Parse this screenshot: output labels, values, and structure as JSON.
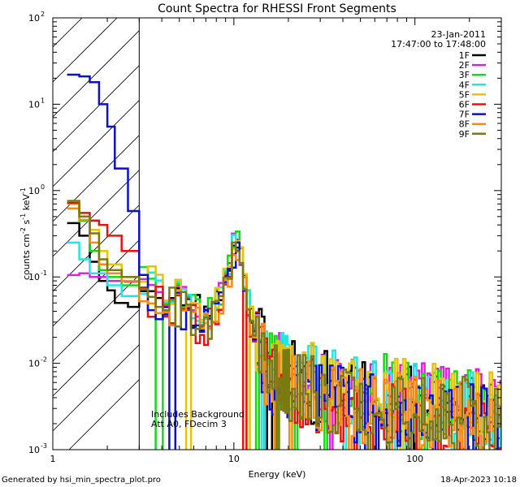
{
  "chart_data": {
    "type": "line",
    "title": "Count Spectra for RHESSI Front Segments",
    "xlabel": "Energy (keV)",
    "ylabel_parts": [
      "counts cm",
      "-2",
      " s",
      "-1",
      " keV",
      "-1"
    ],
    "xscale": "log",
    "yscale": "log",
    "xlim": [
      1,
      300
    ],
    "ylim": [
      0.001,
      100
    ],
    "x_ticks": [
      {
        "v": 1,
        "label": "1"
      },
      {
        "v": 10,
        "label": "10"
      },
      {
        "v": 100,
        "label": "100"
      }
    ],
    "y_ticks": [
      {
        "v": 0.001,
        "base": "10",
        "exp": "-3"
      },
      {
        "v": 0.01,
        "base": "10",
        "exp": "-2"
      },
      {
        "v": 0.1,
        "base": "10",
        "exp": "-1"
      },
      {
        "v": 1,
        "base": "10",
        "exp": "0"
      },
      {
        "v": 10,
        "base": "10",
        "exp": "1"
      },
      {
        "v": 100,
        "base": "10",
        "exp": "2"
      }
    ],
    "date": "23-Jan-2011",
    "time_range": "17:47:00 to 17:48:00",
    "annotations": [
      "Includes Background",
      "Att A0, FDecim 3"
    ],
    "excluded_region_max_kev": 3,
    "footer_left": "Generated by hsi_min_spectra_plot.pro",
    "footer_right": "18-Apr-2023 10:18",
    "base_spectrum_above_3kev": [
      [
        3,
        0.08
      ],
      [
        4,
        0.055
      ],
      [
        5,
        0.045
      ],
      [
        6,
        0.035
      ],
      [
        7,
        0.03
      ],
      [
        8,
        0.04
      ],
      [
        9,
        0.09
      ],
      [
        10,
        0.25
      ],
      [
        11,
        0.12
      ],
      [
        12,
        0.03
      ],
      [
        14,
        0.012
      ],
      [
        16,
        0.008
      ],
      [
        20,
        0.006
      ],
      [
        25,
        0.005
      ],
      [
        30,
        0.0045
      ],
      [
        40,
        0.004
      ],
      [
        50,
        0.0035
      ],
      [
        60,
        0.004
      ],
      [
        80,
        0.0035
      ],
      [
        100,
        0.003
      ],
      [
        130,
        0.003
      ],
      [
        160,
        0.0025
      ],
      [
        200,
        0.003
      ],
      [
        250,
        0.0022
      ],
      [
        300,
        0.002
      ]
    ],
    "series": [
      {
        "name": "1F",
        "color": "#000000",
        "low": [
          [
            1.2,
            0.42
          ],
          [
            1.4,
            0.3
          ],
          [
            1.6,
            0.15
          ],
          [
            1.8,
            0.09
          ],
          [
            2,
            0.07
          ],
          [
            2.2,
            0.05
          ],
          [
            2.6,
            0.045
          ],
          [
            3,
            0.06
          ]
        ]
      },
      {
        "name": "2F",
        "color": "#e11ee1",
        "low": [
          [
            1.2,
            0.105
          ],
          [
            1.4,
            0.11
          ],
          [
            1.6,
            0.1
          ],
          [
            2,
            0.09
          ],
          [
            2.5,
            0.088
          ],
          [
            3,
            0.1
          ]
        ]
      },
      {
        "name": "3F",
        "color": "#10dd10",
        "low": [
          [
            1.2,
            0.62
          ],
          [
            1.4,
            0.45
          ],
          [
            1.6,
            0.2
          ],
          [
            1.8,
            0.12
          ],
          [
            2,
            0.1
          ],
          [
            2.4,
            0.08
          ],
          [
            3,
            0.075
          ]
        ]
      },
      {
        "name": "4F",
        "color": "#22e5e5",
        "low": [
          [
            1.2,
            0.25
          ],
          [
            1.4,
            0.16
          ],
          [
            1.6,
            0.11
          ],
          [
            2,
            0.08
          ],
          [
            2.4,
            0.06
          ],
          [
            3,
            0.055
          ]
        ]
      },
      {
        "name": "5F",
        "color": "#e6c400",
        "low": [
          [
            1.2,
            0.7
          ],
          [
            1.4,
            0.5
          ],
          [
            1.6,
            0.35
          ],
          [
            1.8,
            0.2
          ],
          [
            2,
            0.14
          ],
          [
            2.4,
            0.1
          ],
          [
            3,
            0.09
          ]
        ]
      },
      {
        "name": "6F",
        "color": "#e81010",
        "low": [
          [
            1.2,
            0.72
          ],
          [
            1.4,
            0.55
          ],
          [
            1.6,
            0.45
          ],
          [
            1.8,
            0.4
          ],
          [
            2,
            0.3
          ],
          [
            2.4,
            0.2
          ],
          [
            3,
            0.18
          ]
        ]
      },
      {
        "name": "7F",
        "color": "#0a10d0",
        "low": [
          [
            1.2,
            22
          ],
          [
            1.4,
            21
          ],
          [
            1.6,
            18
          ],
          [
            1.8,
            10
          ],
          [
            2,
            5.5
          ],
          [
            2.2,
            1.8
          ],
          [
            2.6,
            0.58
          ],
          [
            3,
            0.14
          ]
        ]
      },
      {
        "name": "8F",
        "color": "#ff8a10",
        "low": [
          [
            1.2,
            0.62
          ],
          [
            1.4,
            0.46
          ],
          [
            1.6,
            0.25
          ],
          [
            1.8,
            0.14
          ],
          [
            2,
            0.11
          ],
          [
            2.4,
            0.09
          ],
          [
            3,
            0.08
          ]
        ]
      },
      {
        "name": "9F",
        "color": "#7a7a10",
        "low": [
          [
            1.2,
            0.76
          ],
          [
            1.4,
            0.5
          ],
          [
            1.6,
            0.32
          ],
          [
            1.8,
            0.16
          ],
          [
            2,
            0.12
          ],
          [
            2.4,
            0.1
          ],
          [
            3,
            0.085
          ]
        ]
      }
    ]
  }
}
